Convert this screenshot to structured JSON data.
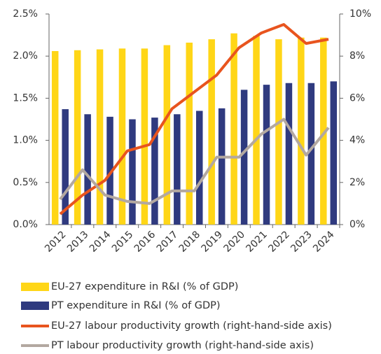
{
  "chart_data": {
    "type": "bar",
    "categories": [
      "2012",
      "2013",
      "2014",
      "2015",
      "2016",
      "2017",
      "2018",
      "2019",
      "2020",
      "2021",
      "2022",
      "2023",
      "2024"
    ],
    "series": [
      {
        "name": "EU-27 expenditure in R&I (% of GDP)",
        "type": "bar",
        "color": "#FFD617",
        "values": [
          2.06,
          2.07,
          2.08,
          2.09,
          2.09,
          2.13,
          2.16,
          2.2,
          2.27,
          2.24,
          2.2,
          2.22,
          2.22
        ]
      },
      {
        "name": "PT expenditure in R&I (% of GDP)",
        "type": "bar",
        "color": "#2F3A7F",
        "values": [
          1.37,
          1.31,
          1.28,
          1.25,
          1.27,
          1.31,
          1.35,
          1.38,
          1.6,
          1.66,
          1.68,
          1.68,
          1.7
        ]
      },
      {
        "name": "EU-27 labour productivity growth (right-hand-side axis)",
        "type": "line",
        "axis": "y2",
        "color": "#E8541E",
        "values": [
          0.5,
          1.4,
          2.1,
          3.5,
          3.8,
          5.5,
          6.3,
          7.1,
          8.4,
          9.1,
          9.5,
          8.6,
          8.8
        ]
      },
      {
        "name": "PT labour productivity growth (right-hand-side axis)",
        "type": "line",
        "axis": "y2",
        "color": "#B3A8A0",
        "values": [
          1.2,
          2.6,
          1.4,
          1.1,
          1.0,
          1.6,
          1.6,
          3.2,
          3.2,
          4.3,
          5.0,
          3.3,
          4.6
        ]
      }
    ],
    "ylim": [
      0,
      2.5
    ],
    "yticks": [
      {
        "value": 0,
        "label": "0.0%"
      },
      {
        "value": 0.5,
        "label": "0.5%"
      },
      {
        "value": 1,
        "label": "1.0%"
      },
      {
        "value": 1.5,
        "label": "1.5%"
      },
      {
        "value": 2,
        "label": "2.0%"
      },
      {
        "value": 2.5,
        "label": "2.5%"
      }
    ],
    "y2lim": [
      0,
      10
    ],
    "y2ticks": [
      {
        "value": 0,
        "label": "0%"
      },
      {
        "value": 2,
        "label": "2%"
      },
      {
        "value": 4,
        "label": "4%"
      },
      {
        "value": 6,
        "label": "6%"
      },
      {
        "value": 8,
        "label": "8%"
      },
      {
        "value": 10,
        "label": "10%"
      }
    ],
    "grid": false
  }
}
